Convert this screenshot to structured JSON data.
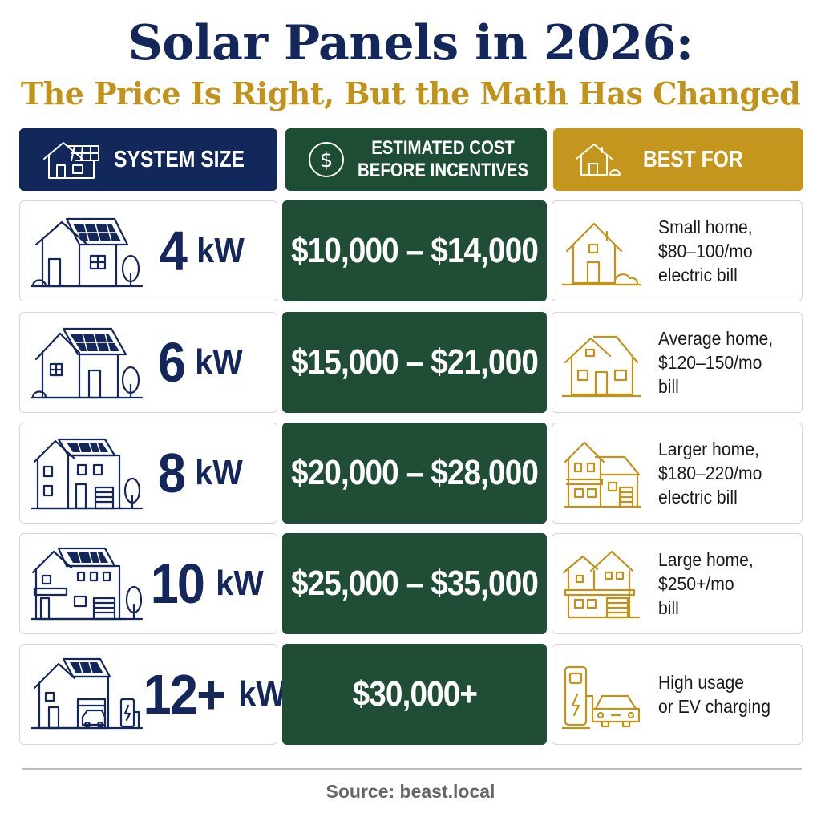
{
  "title": "Solar Panels in 2026:",
  "subtitle": "The Price Is Right, But the Math Has Changed",
  "headers": {
    "system_size": "SYSTEM SIZE",
    "cost_line1": "ESTIMATED COST",
    "cost_line2": "BEFORE INCENTIVES",
    "best_for": "BEST FOR"
  },
  "rows": [
    {
      "size": "4",
      "unit": "kW",
      "cost": "$10,000 – $14,000",
      "best": [
        "Small home,",
        "$80–100/mo",
        "electric bill"
      ]
    },
    {
      "size": "6",
      "unit": "kW",
      "cost": "$15,000 – $21,000",
      "best": [
        "Average home,",
        "$120–150/mo",
        "bill"
      ]
    },
    {
      "size": "8",
      "unit": "kW",
      "cost": "$20,000 – $28,000",
      "best": [
        "Larger home,",
        "$180–220/mo",
        "electric bill"
      ]
    },
    {
      "size": "10",
      "unit": "kW",
      "cost": "$25,000 – $35,000",
      "best": [
        "Large home,",
        "$250+/mo",
        "bill"
      ]
    },
    {
      "size": "12+",
      "unit": "kW",
      "cost": "$30,000+",
      "best": [
        "High usage",
        "or EV charging"
      ]
    }
  ],
  "source": "Source: beast.local",
  "colors": {
    "navy": "#14275a",
    "green": "#1f4d35",
    "gold": "#c4961e"
  }
}
